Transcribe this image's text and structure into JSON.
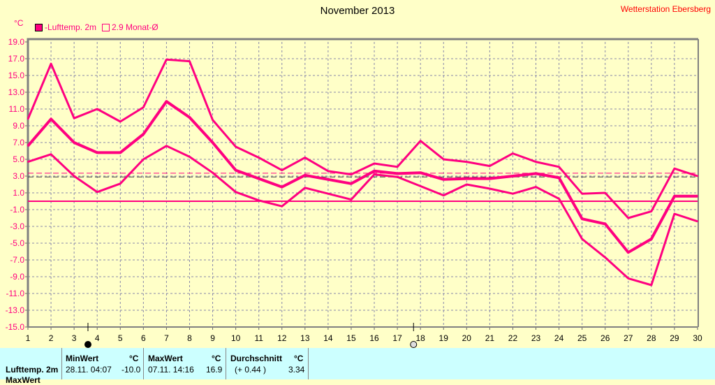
{
  "header": {
    "title": "November 2013",
    "station": "Wetterstation Ebersberg",
    "unit": "°C"
  },
  "legend": [
    {
      "label": "-Lufttemp. 2m",
      "color": "#ff0080",
      "filled": true
    },
    {
      "label": "2.9 Monat-Ø",
      "color": "#ff0080",
      "filled": false
    }
  ],
  "chart_data": {
    "type": "line",
    "title": "November 2013",
    "xlabel": "",
    "ylabel": "°C",
    "x": [
      1,
      2,
      3,
      4,
      5,
      6,
      7,
      8,
      9,
      10,
      11,
      12,
      13,
      14,
      15,
      16,
      17,
      18,
      19,
      20,
      21,
      22,
      23,
      24,
      25,
      26,
      27,
      28,
      29,
      30
    ],
    "ylim": [
      -15,
      19
    ],
    "yticks": [
      "19.0",
      "17.0",
      "15.0",
      "13.0",
      "11.0",
      "9.0",
      "7.0",
      "5.0",
      "3.0",
      "1.0",
      "-1.0",
      "-3.0",
      "-5.0",
      "-7.0",
      "-9.0",
      "-11.0",
      "-13.0",
      "-15.0"
    ],
    "grid": true,
    "series": [
      {
        "name": "Max",
        "values": [
          9.8,
          16.4,
          9.9,
          11.0,
          9.5,
          11.2,
          16.9,
          16.7,
          9.7,
          6.5,
          5.2,
          3.7,
          5.2,
          3.6,
          3.2,
          4.5,
          4.1,
          7.2,
          5.0,
          4.7,
          4.2,
          5.7,
          4.7,
          4.1,
          0.9,
          1.0,
          -2.0,
          -1.2,
          3.9,
          3.0
        ]
      },
      {
        "name": "Lufttemp. 2m",
        "values": [
          6.6,
          9.8,
          7.0,
          5.8,
          5.8,
          8.0,
          11.9,
          10.0,
          7.0,
          3.7,
          2.7,
          1.7,
          3.1,
          2.6,
          2.1,
          3.6,
          3.3,
          3.4,
          2.6,
          2.7,
          2.7,
          3.0,
          3.3,
          2.8,
          -2.1,
          -2.7,
          -6.1,
          -4.5,
          0.6,
          0.6
        ]
      },
      {
        "name": "Min",
        "values": [
          4.7,
          5.6,
          3.0,
          1.1,
          2.1,
          5.0,
          6.6,
          5.3,
          3.4,
          1.1,
          0.1,
          -0.6,
          1.6,
          0.9,
          0.2,
          3.2,
          2.9,
          1.8,
          0.7,
          2.0,
          1.5,
          0.9,
          1.7,
          0.3,
          -4.5,
          -6.7,
          -9.2,
          -10.0,
          -1.5,
          -2.4
        ]
      }
    ],
    "reference_lines": [
      {
        "name": "Durchschnitt",
        "value": 3.34,
        "style": "dashed",
        "color": "#ff0080"
      },
      {
        "name": "Monat-Ø",
        "value": 2.9,
        "style": "dashed",
        "color": "#404040"
      },
      {
        "name": "Null",
        "value": 0,
        "style": "solid",
        "color": "#ff0080"
      }
    ],
    "moon_phases": [
      {
        "day": 3.6,
        "phase": "new"
      },
      {
        "day": 17.7,
        "phase": "full"
      }
    ]
  },
  "table": {
    "row_label": "Lufttemp. 2m",
    "row2_label": "MaxWert",
    "min": {
      "header": "MinWert",
      "unit": "°C",
      "time": "28.11.  04:07",
      "value": "-10.0"
    },
    "max": {
      "header": "MaxWert",
      "unit": "°C",
      "time": "07.11.  14:16",
      "value": "16.9"
    },
    "avg": {
      "header": "Durchschnitt",
      "unit": "°C",
      "delta": "(+ 0.44 )",
      "value": "3.34"
    }
  }
}
